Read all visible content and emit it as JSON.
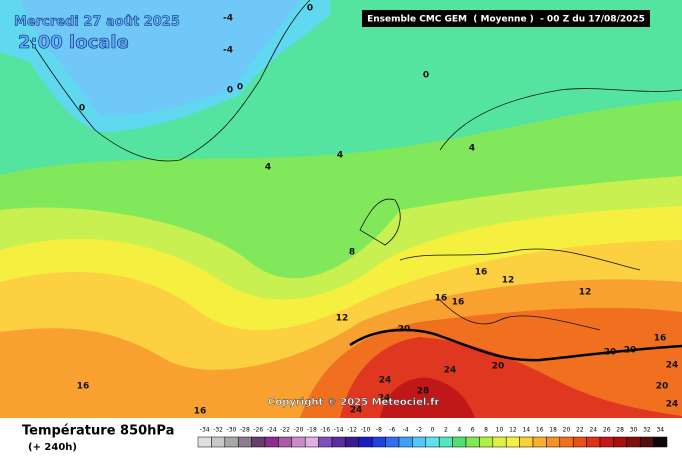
{
  "header": {
    "date": "Mercredi 27 août 2025",
    "time": "2:00 locale",
    "run": "Ensemble CMC GEM  ( Moyenne )  - 00 Z du 17/08/2025"
  },
  "map": {
    "contour_labels": [
      0,
      -4,
      -4,
      0,
      0,
      0,
      0,
      4,
      4,
      4,
      8,
      12,
      12,
      16,
      12,
      16,
      16,
      20,
      16,
      20,
      20,
      24,
      20,
      24,
      24,
      28,
      24,
      20,
      24,
      24,
      16,
      16
    ]
  },
  "footer": {
    "title": "Température 850hPa",
    "lead": "(+ 240h)",
    "copyright": "Copyright © 2025 Meteociel.fr"
  },
  "legend": {
    "values": [
      -34,
      -32,
      -30,
      -28,
      -26,
      -24,
      -22,
      -20,
      -18,
      -16,
      -14,
      -12,
      -10,
      -8,
      -6,
      -4,
      -2,
      0,
      2,
      4,
      6,
      8,
      10,
      12,
      14,
      16,
      18,
      20,
      22,
      24,
      26,
      28,
      30,
      32,
      34
    ],
    "colors": [
      "#e0e0e0",
      "#c8c8c8",
      "#a8a8a8",
      "#8c7c8c",
      "#6c3c6c",
      "#8c2c8c",
      "#a85ca8",
      "#c88cc8",
      "#e0b0e0",
      "#8050c0",
      "#5c2ca0",
      "#3c1c8c",
      "#1c1cc0",
      "#2040e0",
      "#3070f0",
      "#40a0f8",
      "#50c8f8",
      "#60e0f0",
      "#50e8c0",
      "#50e070",
      "#80e850",
      "#b0f040",
      "#e0f040",
      "#f8f040",
      "#f8d038",
      "#f8b030",
      "#f89028",
      "#f07020",
      "#e85018",
      "#e03018",
      "#c81818",
      "#a81010",
      "#801010",
      "#501010",
      "#100808"
    ]
  }
}
